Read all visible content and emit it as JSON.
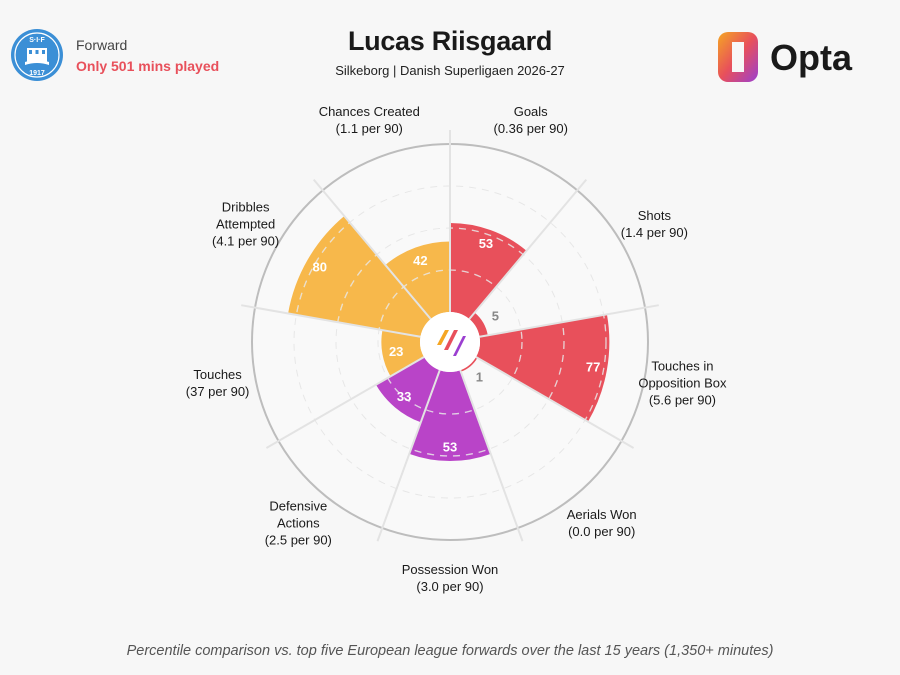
{
  "header": {
    "player": "Lucas Riisgaard",
    "subtitle": "Silkeborg | Danish Superligaen 2026-27",
    "position": "Forward",
    "minutes_note": "Only 501 mins played",
    "badge_text_top": "S·I·F",
    "badge_text_year": "1917",
    "brand": "Opta"
  },
  "footnote": "Percentile comparison vs. top five European league forwards over the last 15 years (1,350+ minutes)",
  "chart_data": {
    "type": "polar-bar",
    "rmax": 100,
    "categories": [
      {
        "label": "Goals",
        "sub": "(0.36 per 90)",
        "value": 53,
        "color": "#e8505b"
      },
      {
        "label": "Shots",
        "sub": "(1.4 per 90)",
        "value": 5,
        "color": "#e8505b"
      },
      {
        "label": "Touches in|Opposition Box",
        "sub": "(5.6 per 90)",
        "value": 77,
        "color": "#e8505b"
      },
      {
        "label": "Aerials Won",
        "sub": "(0.0 per 90)",
        "value": 1,
        "color": "#e8505b"
      },
      {
        "label": "Possession Won",
        "sub": "(3.0 per 90)",
        "value": 53,
        "color": "#b944c8"
      },
      {
        "label": "Defensive|Actions",
        "sub": "(2.5 per 90)",
        "value": 33,
        "color": "#b944c8"
      },
      {
        "label": "Touches",
        "sub": "(37 per 90)",
        "value": 23,
        "color": "#f7b84b"
      },
      {
        "label": "Dribbles|Attempted",
        "sub": "(4.1 per 90)",
        "value": 80,
        "color": "#f7b84b"
      },
      {
        "label": "Chances Created",
        "sub": "(1.1 per 90)",
        "value": 42,
        "color": "#f7b84b"
      }
    ],
    "colors": {
      "attacking": "#e8505b",
      "defending": "#b944c8",
      "possession": "#f7b84b"
    }
  }
}
